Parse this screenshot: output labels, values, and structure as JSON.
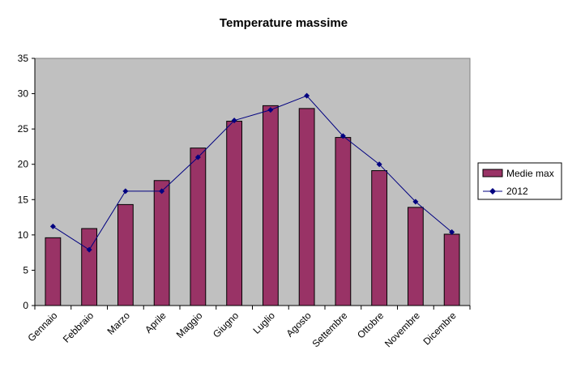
{
  "chart_data": {
    "type": "bar",
    "title": "Temperature massime",
    "xlabel": "",
    "ylabel": "",
    "categories": [
      "Gennaio",
      "Febbraio",
      "Marzo",
      "Aprile",
      "Maggio",
      "Giugno",
      "Luglio",
      "Agosto",
      "Settembre",
      "Ottobre",
      "Novembre",
      "Dicembre"
    ],
    "series": [
      {
        "name": "Medie max",
        "type": "bar",
        "color": "#993366",
        "values": [
          9.6,
          10.9,
          14.3,
          17.7,
          22.3,
          26.1,
          28.3,
          27.9,
          23.8,
          19.1,
          13.9,
          10.1
        ]
      },
      {
        "name": "2012",
        "type": "line",
        "color": "#000080",
        "values": [
          11.2,
          7.9,
          16.2,
          16.2,
          21.0,
          26.2,
          27.7,
          29.7,
          24.0,
          20.0,
          14.7,
          10.4
        ]
      }
    ],
    "ylim": [
      0,
      35
    ],
    "yticks": [
      0,
      5,
      10,
      15,
      20,
      25,
      30,
      35
    ],
    "grid": false,
    "plot_background": "#c0c0c0",
    "legend": "right"
  }
}
